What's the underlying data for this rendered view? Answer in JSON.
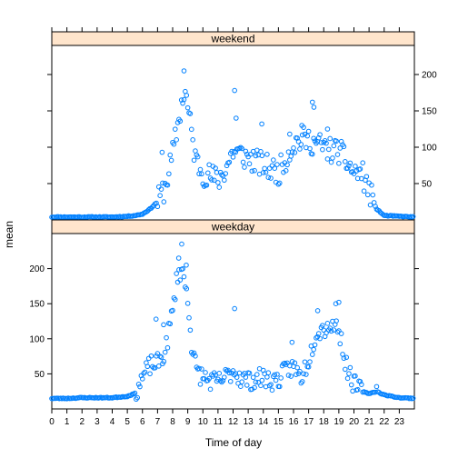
{
  "chart_data": {
    "type": "scatter",
    "layout": "trellis-2-panel-vertical",
    "xlabel": "Time of day",
    "ylabel": "mean",
    "xlim": [
      0,
      24
    ],
    "x_ticks": [
      0,
      1,
      2,
      3,
      4,
      5,
      6,
      7,
      8,
      9,
      10,
      11,
      12,
      13,
      14,
      15,
      16,
      17,
      18,
      19,
      20,
      21,
      22,
      23
    ],
    "x_tick_labels": [
      "0",
      "1",
      "2",
      "3",
      "4",
      "5",
      "6",
      "7",
      "8",
      "9",
      "10",
      "11",
      "12",
      "13",
      "14",
      "15",
      "16",
      "17",
      "18",
      "19",
      "20",
      "21",
      "22",
      "23"
    ],
    "point_color": "#0080ff",
    "strip_color": "#ffe5cc",
    "panels": [
      {
        "name": "weekend",
        "ylim": [
          0,
          240
        ],
        "y_ticks": [
          50,
          100,
          150,
          200
        ],
        "y_tick_labels": [
          "50",
          "100",
          "150",
          "200"
        ],
        "y_axis_side": "right",
        "keypoints": [
          [
            0,
            4
          ],
          [
            1,
            4
          ],
          [
            2,
            4
          ],
          [
            3,
            4
          ],
          [
            4,
            4
          ],
          [
            5,
            5
          ],
          [
            5.5,
            6
          ],
          [
            6,
            8
          ],
          [
            6.5,
            15
          ],
          [
            7,
            25
          ],
          [
            7.5,
            45
          ],
          [
            8,
            90
          ],
          [
            8.5,
            150
          ],
          [
            8.8,
            180
          ],
          [
            9,
            155
          ],
          [
            9.5,
            85
          ],
          [
            10,
            65
          ],
          [
            10.5,
            60
          ],
          [
            11,
            55
          ],
          [
            11.5,
            70
          ],
          [
            12,
            95
          ],
          [
            12.5,
            90
          ],
          [
            13,
            85
          ],
          [
            13.5,
            80
          ],
          [
            14,
            75
          ],
          [
            14.5,
            70
          ],
          [
            15,
            65
          ],
          [
            15.5,
            85
          ],
          [
            16,
            105
          ],
          [
            16.5,
            110
          ],
          [
            17,
            110
          ],
          [
            17.5,
            105
          ],
          [
            18,
            100
          ],
          [
            18.5,
            95
          ],
          [
            19,
            95
          ],
          [
            19.5,
            80
          ],
          [
            20,
            65
          ],
          [
            20.5,
            65
          ],
          [
            21,
            40
          ],
          [
            21.5,
            15
          ],
          [
            22,
            6
          ],
          [
            23,
            5
          ],
          [
            24,
            4
          ]
        ],
        "highs": [
          [
            8.75,
            205
          ],
          [
            12.1,
            178
          ],
          [
            12.2,
            140
          ],
          [
            17.25,
            162
          ],
          [
            17.35,
            155
          ],
          [
            7.3,
            93
          ],
          [
            13.9,
            132
          ],
          [
            16.55,
            130
          ],
          [
            15.75,
            118
          ],
          [
            18.25,
            125
          ]
        ],
        "noise": 18,
        "seed": 11
      },
      {
        "name": "weekday",
        "ylim": [
          0,
          250
        ],
        "y_ticks": [
          50,
          100,
          150,
          200
        ],
        "y_tick_labels": [
          "50",
          "100",
          "150",
          "200"
        ],
        "y_axis_side": "left",
        "keypoints": [
          [
            0,
            15
          ],
          [
            1,
            15
          ],
          [
            2,
            16
          ],
          [
            3,
            16
          ],
          [
            4,
            16
          ],
          [
            5,
            18
          ],
          [
            5.5,
            22
          ],
          [
            6,
            45
          ],
          [
            6.5,
            62
          ],
          [
            7,
            65
          ],
          [
            7.5,
            80
          ],
          [
            8,
            140
          ],
          [
            8.3,
            190
          ],
          [
            8.6,
            200
          ],
          [
            9,
            160
          ],
          [
            9.3,
            80
          ],
          [
            9.6,
            55
          ],
          [
            10,
            45
          ],
          [
            10.5,
            40
          ],
          [
            11,
            38
          ],
          [
            11.5,
            45
          ],
          [
            12,
            55
          ],
          [
            12.5,
            45
          ],
          [
            13,
            40
          ],
          [
            13.5,
            42
          ],
          [
            14,
            45
          ],
          [
            14.5,
            40
          ],
          [
            15,
            42
          ],
          [
            15.5,
            55
          ],
          [
            16,
            60
          ],
          [
            16.5,
            45
          ],
          [
            17,
            70
          ],
          [
            17.5,
            110
          ],
          [
            18,
            115
          ],
          [
            18.5,
            120
          ],
          [
            19,
            115
          ],
          [
            19.5,
            60
          ],
          [
            20,
            35
          ],
          [
            20.5,
            25
          ],
          [
            21,
            22
          ],
          [
            21.5,
            25
          ],
          [
            22,
            20
          ],
          [
            22.5,
            18
          ],
          [
            23,
            16
          ],
          [
            24,
            15
          ]
        ],
        "highs": [
          [
            8.6,
            235
          ],
          [
            8.4,
            215
          ],
          [
            8.9,
            205
          ],
          [
            12.1,
            143
          ],
          [
            19.0,
            152
          ],
          [
            18.8,
            150
          ],
          [
            6.9,
            128
          ],
          [
            17.6,
            140
          ],
          [
            15.9,
            95
          ],
          [
            7.4,
            120
          ]
        ],
        "noise": 14,
        "seed": 23
      }
    ]
  }
}
